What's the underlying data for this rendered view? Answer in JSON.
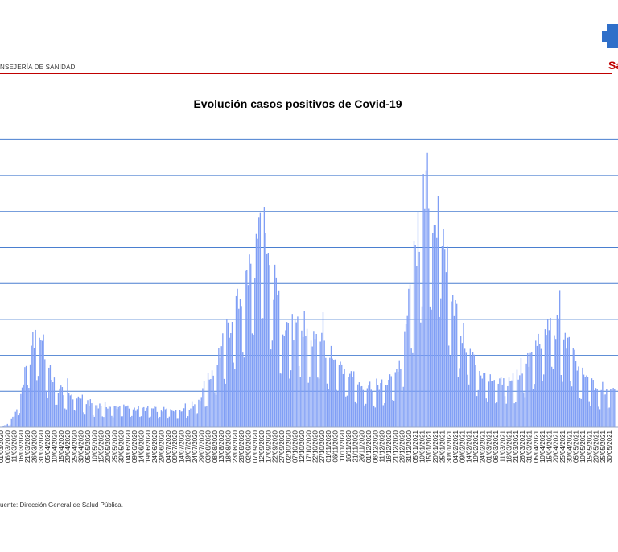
{
  "header": {
    "department": "NSEJERÍA DE SANIDAD",
    "logo_text": "Sa"
  },
  "colors": {
    "bar": "#7f9ef5",
    "grid": "#4a7fd0",
    "header_rule": "#c00000",
    "logo_blue": "#2f6fc9",
    "logo_red": "#c00000"
  },
  "chart_data": {
    "type": "bar",
    "title": "Evolución casos positivos de Covid-19",
    "xlabel": "",
    "ylabel": "",
    "grid": true,
    "legend": "none",
    "start_date": "2020-03-01",
    "end_date": "2021-06-03",
    "tick_labels": [
      "01/03/2020",
      "06/03/2020",
      "11/03/2020",
      "16/03/2020",
      "21/03/2020",
      "26/03/2020",
      "31/03/2020",
      "05/04/2020",
      "10/04/2020",
      "15/04/2020",
      "20/04/2020",
      "25/04/2020",
      "30/04/2020",
      "05/05/2020",
      "10/05/2020",
      "15/05/2020",
      "20/05/2020",
      "25/05/2020",
      "30/05/2020",
      "04/06/2020",
      "09/06/2020",
      "14/06/2020",
      "19/06/2020",
      "24/06/2020",
      "29/06/2020",
      "04/07/2020",
      "09/07/2020",
      "14/07/2020",
      "19/07/2020",
      "24/07/2020",
      "29/07/2020",
      "03/08/2020",
      "08/08/2020",
      "13/08/2020",
      "18/08/2020",
      "23/08/2020",
      "28/08/2020",
      "02/09/2020",
      "07/09/2020",
      "12/09/2020",
      "17/09/2020",
      "22/09/2020",
      "27/09/2020",
      "02/10/2020",
      "07/10/2020",
      "12/10/2020",
      "17/10/2020",
      "22/10/2020",
      "27/10/2020",
      "01/11/2020",
      "06/11/2020",
      "11/11/2020",
      "16/11/2020",
      "21/11/2020",
      "26/11/2020",
      "01/12/2020",
      "06/12/2020",
      "11/12/2020",
      "16/12/2020",
      "21/12/2020",
      "26/12/2020",
      "31/12/2020",
      "05/01/2021",
      "10/01/2021",
      "15/01/2021",
      "20/01/2021",
      "25/01/2021",
      "30/01/2021",
      "04/02/2021",
      "09/02/2021",
      "14/02/2021",
      "19/02/2021",
      "24/02/2021",
      "01/03/2021",
      "06/03/2021",
      "11/03/2021",
      "16/03/2021",
      "21/03/2021",
      "26/03/2021",
      "31/03/2021",
      "05/04/2021",
      "10/04/2021",
      "15/04/2021",
      "20/04/2021",
      "25/04/2021",
      "30/04/2021",
      "05/05/2021",
      "10/05/2021",
      "15/05/2021",
      "20/05/2021",
      "25/05/2021",
      "30/05/2021"
    ],
    "grid_levels": [
      0,
      1,
      2,
      3,
      4,
      5,
      6,
      7,
      8
    ],
    "ylim": [
      0,
      8.1
    ],
    "envelope": [
      [
        0,
        0.02
      ],
      [
        6,
        0.1
      ],
      [
        12,
        0.5
      ],
      [
        18,
        1.5
      ],
      [
        24,
        2.4
      ],
      [
        29,
        2.85
      ],
      [
        34,
        1.8
      ],
      [
        42,
        1.15
      ],
      [
        55,
        0.9
      ],
      [
        70,
        0.65
      ],
      [
        100,
        0.55
      ],
      [
        125,
        0.5
      ],
      [
        140,
        0.55
      ],
      [
        150,
        0.9
      ],
      [
        160,
        1.8
      ],
      [
        170,
        2.8
      ],
      [
        180,
        3.8
      ],
      [
        188,
        4.8
      ],
      [
        193,
        5.3
      ],
      [
        196,
        6.1
      ],
      [
        200,
        4.8
      ],
      [
        205,
        4.0
      ],
      [
        210,
        3.1
      ],
      [
        220,
        2.8
      ],
      [
        235,
        2.5
      ],
      [
        250,
        2.1
      ],
      [
        260,
        1.6
      ],
      [
        270,
        1.2
      ],
      [
        280,
        1.2
      ],
      [
        290,
        1.3
      ],
      [
        300,
        1.9
      ],
      [
        305,
        3.6
      ],
      [
        310,
        5.0
      ],
      [
        316,
        6.4
      ],
      [
        320,
        7.1
      ],
      [
        324,
        6.1
      ],
      [
        330,
        5.6
      ],
      [
        335,
        4.5
      ],
      [
        342,
        3.0
      ],
      [
        350,
        2.2
      ],
      [
        360,
        1.5
      ],
      [
        370,
        1.2
      ],
      [
        385,
        1.45
      ],
      [
        395,
        1.9
      ],
      [
        402,
        2.5
      ],
      [
        410,
        2.9
      ],
      [
        418,
        2.8
      ],
      [
        425,
        2.4
      ],
      [
        432,
        1.6
      ],
      [
        440,
        1.3
      ],
      [
        450,
        1.0
      ],
      [
        459,
        1.2
      ]
    ]
  },
  "footer": {
    "source": "uente: Dirección General de Salud Pública."
  }
}
